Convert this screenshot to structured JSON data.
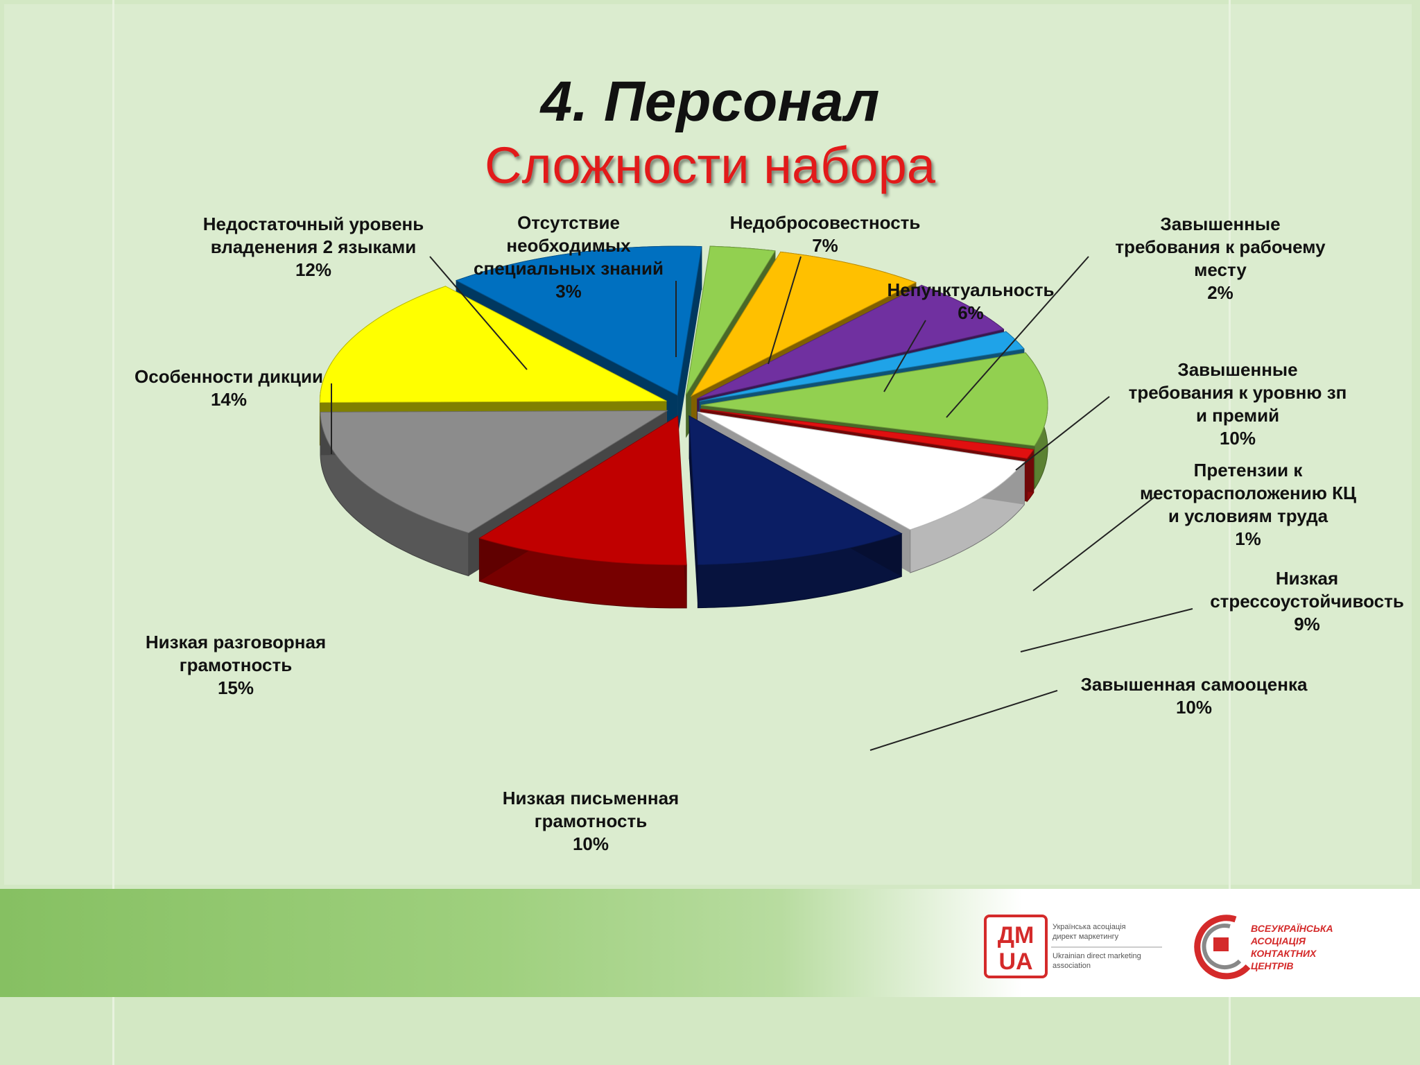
{
  "title": "4. Персонал",
  "subtitle": "Сложности набора",
  "chart_data": {
    "type": "pie",
    "title": "4. Персонал",
    "subtitle": "Сложности набора",
    "slices": [
      {
        "label_lines": [
          "Отсутствие",
          "необходимых",
          "специальных знаний"
        ],
        "value": 3,
        "value_text": "3%",
        "color": "#92d050"
      },
      {
        "label_lines": [
          "Недобросовестность"
        ],
        "value": 7,
        "value_text": "7%",
        "color": "#ffc000"
      },
      {
        "label_lines": [
          "Непунктуальность"
        ],
        "value": 6,
        "value_text": "6%",
        "color": "#7030a0"
      },
      {
        "label_lines": [
          "Завышенные",
          "требования к рабочему",
          "месту"
        ],
        "value": 2,
        "value_text": "2%",
        "color": "#1fa3e8"
      },
      {
        "label_lines": [
          "Завышенные",
          "требования к уровню зп",
          "и премий"
        ],
        "value": 10,
        "value_text": "10%",
        "color": "#92d050"
      },
      {
        "label_lines": [
          "Претензии к",
          "месторасположению КЦ",
          "и условиям труда"
        ],
        "value": 1,
        "value_text": "1%",
        "color": "#e01010"
      },
      {
        "label_lines": [
          "Низкая",
          "стрессоустойчивость"
        ],
        "value": 9,
        "value_text": "9%",
        "color": "#ffffff"
      },
      {
        "label_lines": [
          "Завышенная самооценка"
        ],
        "value": 10,
        "value_text": "10%",
        "color": "#0b1e64"
      },
      {
        "label_lines": [
          "Низкая письменная",
          "грамотность"
        ],
        "value": 10,
        "value_text": "10%",
        "color": "#c00000"
      },
      {
        "label_lines": [
          "Низкая разговорная",
          "грамотность"
        ],
        "value": 15,
        "value_text": "15%",
        "color": "#8c8c8c"
      },
      {
        "label_lines": [
          "Особенности дикции"
        ],
        "value": 14,
        "value_text": "14%",
        "color": "#ffff00"
      },
      {
        "label_lines": [
          "Недостаточный уровень",
          "владенения 2 языками"
        ],
        "value": 12,
        "value_text": "12%",
        "color": "#0070c0"
      }
    ]
  },
  "logos": {
    "dm_ua": {
      "mark_lines": [
        "ДМ",
        "UA"
      ],
      "text_lines": [
        "Українська асоціація",
        "директ маркетингу",
        "Ukrainian direct marketing",
        "association"
      ],
      "color": "#d42a2a"
    },
    "contact_centers": {
      "text_lines": [
        "ВСЕУКРАЇНСЬКА",
        "АСОЦІАЦІЯ",
        "КОНТАКТНИХ",
        "ЦЕНТРІВ"
      ],
      "color": "#d42a2a"
    }
  }
}
